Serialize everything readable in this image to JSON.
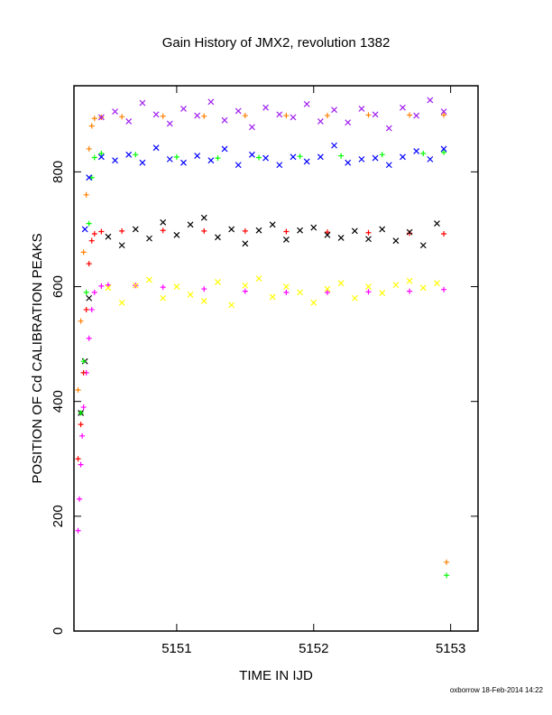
{
  "chart_data": {
    "type": "scatter",
    "title": "Gain History of JMX2, revolution 1382",
    "xlabel": "TIME IN IJD",
    "ylabel": "POSITION OF Cd CALIBRATION PEAKS",
    "xlim": [
      5150.25,
      5153.2
    ],
    "ylim": [
      0,
      950
    ],
    "xticks": [
      5151,
      5152,
      5153
    ],
    "yticks": [
      0,
      200,
      400,
      600,
      800
    ],
    "grid": false,
    "legend": "none",
    "footer": "oxborrow 18-Feb-2014 14:22",
    "series": [
      {
        "color": "#ff00ff",
        "marker": "+",
        "x": [
          5150.28,
          5150.29,
          5150.3,
          5150.31,
          5150.32,
          5150.34,
          5150.36,
          5150.38,
          5150.4,
          5150.45,
          5150.5,
          5150.7,
          5150.9,
          5151.2,
          5151.5,
          5151.8,
          5152.1,
          5152.4,
          5152.7,
          5152.95
        ],
        "y": [
          175,
          230,
          290,
          340,
          390,
          450,
          510,
          560,
          590,
          601,
          603,
          602,
          599,
          596,
          592,
          590,
          590,
          591,
          592,
          595
        ]
      },
      {
        "color": "#ffff00",
        "marker": "x",
        "x": [
          5150.5,
          5150.6,
          5150.7,
          5150.8,
          5150.9,
          5151.0,
          5151.1,
          5151.2,
          5151.3,
          5151.4,
          5151.5,
          5151.6,
          5151.7,
          5151.8,
          5151.9,
          5152.0,
          5152.1,
          5152.2,
          5152.3,
          5152.4,
          5152.5,
          5152.6,
          5152.7,
          5152.8,
          5152.9
        ],
        "y": [
          598,
          572,
          602,
          612,
          580,
          600,
          586,
          575,
          608,
          568,
          602,
          614,
          582,
          600,
          590,
          572,
          596,
          606,
          580,
          600,
          589,
          603,
          610,
          598,
          606
        ]
      },
      {
        "color": "#ff0000",
        "marker": "+",
        "x": [
          5150.28,
          5150.3,
          5150.32,
          5150.34,
          5150.36,
          5150.38,
          5150.4,
          5150.45,
          5150.6,
          5150.9,
          5151.2,
          5151.5,
          5151.8,
          5152.1,
          5152.4,
          5152.7,
          5152.95
        ],
        "y": [
          300,
          360,
          450,
          560,
          640,
          680,
          692,
          696,
          697,
          698,
          697,
          697,
          696,
          695,
          694,
          693,
          692
        ]
      },
      {
        "color": "#000000",
        "marker": "x",
        "x": [
          5150.3,
          5150.33,
          5150.36,
          5150.5,
          5150.6,
          5150.7,
          5150.8,
          5150.9,
          5151.0,
          5151.1,
          5151.2,
          5151.3,
          5151.4,
          5151.5,
          5151.6,
          5151.7,
          5151.8,
          5151.9,
          5152.0,
          5152.1,
          5152.2,
          5152.3,
          5152.4,
          5152.5,
          5152.6,
          5152.7,
          5152.8,
          5152.9
        ],
        "y": [
          380,
          470,
          580,
          687,
          672,
          700,
          684,
          712,
          690,
          708,
          720,
          686,
          700,
          675,
          698,
          708,
          682,
          698,
          703,
          690,
          685,
          697,
          683,
          700,
          680,
          695,
          672,
          710
        ]
      },
      {
        "color": "#00ff00",
        "marker": "+",
        "x": [
          5150.3,
          5150.32,
          5150.34,
          5150.36,
          5150.38,
          5150.4,
          5150.45,
          5150.7,
          5151.0,
          5151.3,
          5151.6,
          5151.9,
          5152.2,
          5152.5,
          5152.8,
          5152.95,
          5152.97
        ],
        "y": [
          380,
          470,
          590,
          710,
          790,
          825,
          832,
          830,
          826,
          824,
          825,
          827,
          828,
          830,
          832,
          834,
          97
        ]
      },
      {
        "color": "#0000ff",
        "marker": "x",
        "x": [
          5150.33,
          5150.36,
          5150.45,
          5150.55,
          5150.65,
          5150.75,
          5150.85,
          5150.95,
          5151.05,
          5151.15,
          5151.25,
          5151.35,
          5151.45,
          5151.55,
          5151.65,
          5151.75,
          5151.85,
          5151.95,
          5152.05,
          5152.15,
          5152.25,
          5152.35,
          5152.45,
          5152.55,
          5152.65,
          5152.75,
          5152.85,
          5152.95
        ],
        "y": [
          700,
          790,
          826,
          820,
          830,
          816,
          842,
          822,
          816,
          828,
          820,
          840,
          812,
          830,
          824,
          812,
          826,
          818,
          826,
          846,
          816,
          822,
          824,
          812,
          826,
          836,
          822,
          840
        ]
      },
      {
        "color": "#ff8000",
        "marker": "+",
        "x": [
          5150.28,
          5150.3,
          5150.32,
          5150.34,
          5150.36,
          5150.38,
          5150.4,
          5150.45,
          5150.6,
          5150.9,
          5151.2,
          5151.5,
          5151.8,
          5152.1,
          5152.4,
          5152.7,
          5152.95,
          5152.97
        ],
        "y": [
          420,
          540,
          660,
          760,
          840,
          880,
          893,
          895,
          896,
          897,
          897,
          898,
          898,
          898,
          899,
          899,
          899,
          120
        ]
      },
      {
        "color": "#a020f0",
        "marker": "x",
        "x": [
          5150.45,
          5150.55,
          5150.65,
          5150.75,
          5150.85,
          5150.95,
          5151.05,
          5151.15,
          5151.25,
          5151.35,
          5151.45,
          5151.55,
          5151.65,
          5151.75,
          5151.85,
          5151.95,
          5152.05,
          5152.15,
          5152.25,
          5152.35,
          5152.45,
          5152.55,
          5152.65,
          5152.75,
          5152.85,
          5152.95
        ],
        "y": [
          895,
          905,
          888,
          920,
          900,
          884,
          910,
          898,
          922,
          890,
          906,
          878,
          912,
          900,
          895,
          918,
          888,
          908,
          886,
          910,
          900,
          876,
          912,
          898,
          925,
          905
        ]
      }
    ]
  }
}
